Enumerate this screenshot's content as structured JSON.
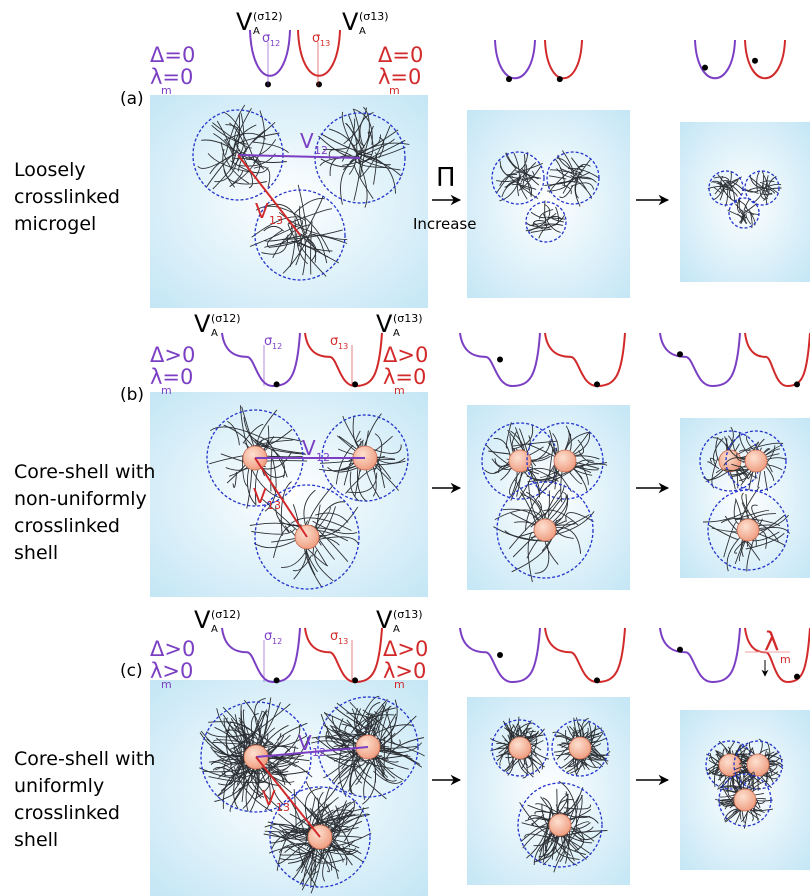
{
  "rows": [
    {
      "tag": "(a)",
      "description": [
        "Loosely",
        "crosslinked",
        "microgel"
      ],
      "potential_left": {
        "symbol": "V",
        "sub": "A",
        "sup": "(σ12)"
      },
      "potential_right": {
        "symbol": "V",
        "sub": "A",
        "sup": "(σ13)"
      },
      "sigma_left": {
        "symbol": "σ",
        "sub": "12"
      },
      "sigma_right": {
        "symbol": "σ",
        "sub": "13"
      },
      "delta_left": "Δ=0",
      "lambda_left": {
        "text": "λ=0",
        "sub": "m"
      },
      "delta_right": "Δ=0",
      "lambda_right": {
        "text": "λ=0",
        "sub": "m"
      },
      "bond_12": {
        "symbol": "V",
        "sub": "12"
      },
      "bond_13": {
        "symbol": "V",
        "sub": "13"
      }
    },
    {
      "tag": "(b)",
      "description": [
        "Core-shell with",
        "non-uniformly",
        "crosslinked",
        "shell"
      ],
      "potential_left": {
        "symbol": "V",
        "sub": "A",
        "sup": "(σ12)"
      },
      "potential_right": {
        "symbol": "V",
        "sub": "A",
        "sup": "(σ13)"
      },
      "sigma_left": {
        "symbol": "σ",
        "sub": "12"
      },
      "sigma_right": {
        "symbol": "σ",
        "sub": "13"
      },
      "delta_left": "Δ>0",
      "lambda_left": {
        "text": "λ=0",
        "sub": "m"
      },
      "delta_right": "Δ>0",
      "lambda_right": {
        "text": "λ=0",
        "sub": "m"
      },
      "bond_12": {
        "symbol": "V",
        "sub": "12"
      },
      "bond_13": {
        "symbol": "V",
        "sub": "13"
      }
    },
    {
      "tag": "(c)",
      "description": [
        "Core-shell with",
        "uniformly",
        "crosslinked",
        "shell"
      ],
      "potential_left": {
        "symbol": "V",
        "sub": "A",
        "sup": "(σ12)"
      },
      "potential_right": {
        "symbol": "V",
        "sub": "A",
        "sup": "(σ13)"
      },
      "sigma_left": {
        "symbol": "σ",
        "sub": "12"
      },
      "sigma_right": {
        "symbol": "σ",
        "sub": "13"
      },
      "delta_left": "Δ>0",
      "lambda_left": {
        "text": "λ>0",
        "sub": "m"
      },
      "delta_right": "Δ>0",
      "lambda_right": {
        "text": "λ>0",
        "sub": "m"
      },
      "bond_12": {
        "symbol": "V",
        "sub": "12"
      },
      "bond_13": {
        "symbol": "V",
        "sub": "13"
      }
    }
  ],
  "arrow": {
    "symbol": "Π",
    "label": "Increase"
  },
  "lambda_marker": {
    "symbol": "λ",
    "sub": "m"
  }
}
